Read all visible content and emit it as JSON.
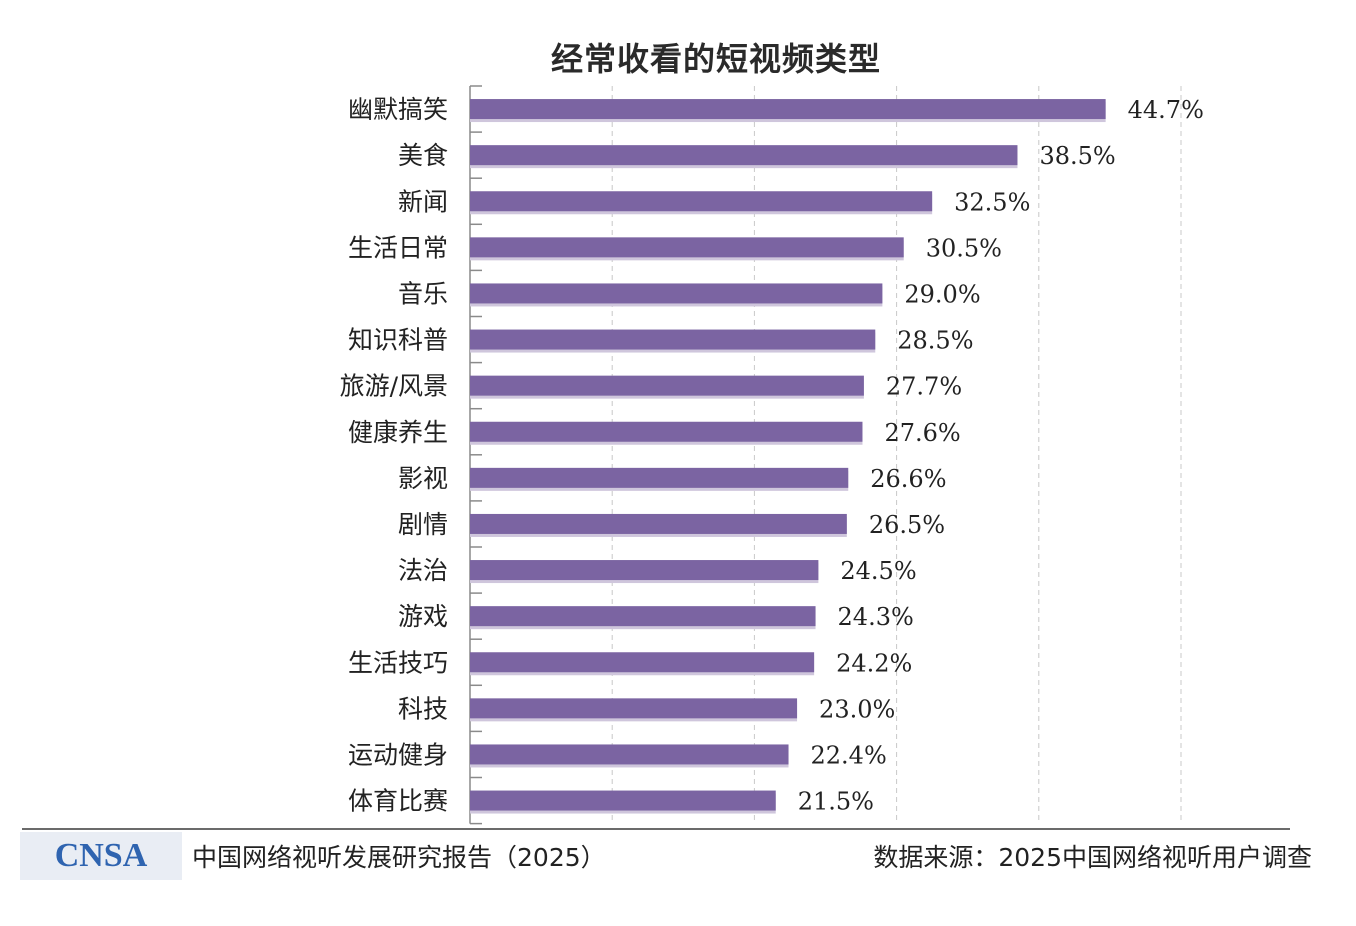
{
  "chart_data": {
    "type": "bar",
    "orientation": "horizontal",
    "title": "经常收看的短视频类型",
    "categories": [
      "幽默搞笑",
      "美食",
      "新闻",
      "生活日常",
      "音乐",
      "知识科普",
      "旅游/风景",
      "健康养生",
      "影视",
      "剧情",
      "法治",
      "游戏",
      "生活技巧",
      "科技",
      "运动健身",
      "体育比赛"
    ],
    "values": [
      44.7,
      38.5,
      32.5,
      30.5,
      29.0,
      28.5,
      27.7,
      27.6,
      26.6,
      26.5,
      24.5,
      24.3,
      24.2,
      23.0,
      22.4,
      21.5
    ],
    "value_labels": [
      "44.7%",
      "38.5%",
      "32.5%",
      "30.5%",
      "29.0%",
      "28.5%",
      "27.7%",
      "27.6%",
      "26.6%",
      "26.5%",
      "24.5%",
      "24.3%",
      "24.2%",
      "23.0%",
      "22.4%",
      "21.5%"
    ],
    "unit": "%",
    "xlim": [
      0,
      50
    ],
    "grid": true,
    "bar_color": "#7b64a2"
  },
  "footer": {
    "logo_text": "CNSA",
    "report_title": "中国网络视听发展研究报告（2025）",
    "source": "数据来源：2025中国网络视听用户调查"
  }
}
